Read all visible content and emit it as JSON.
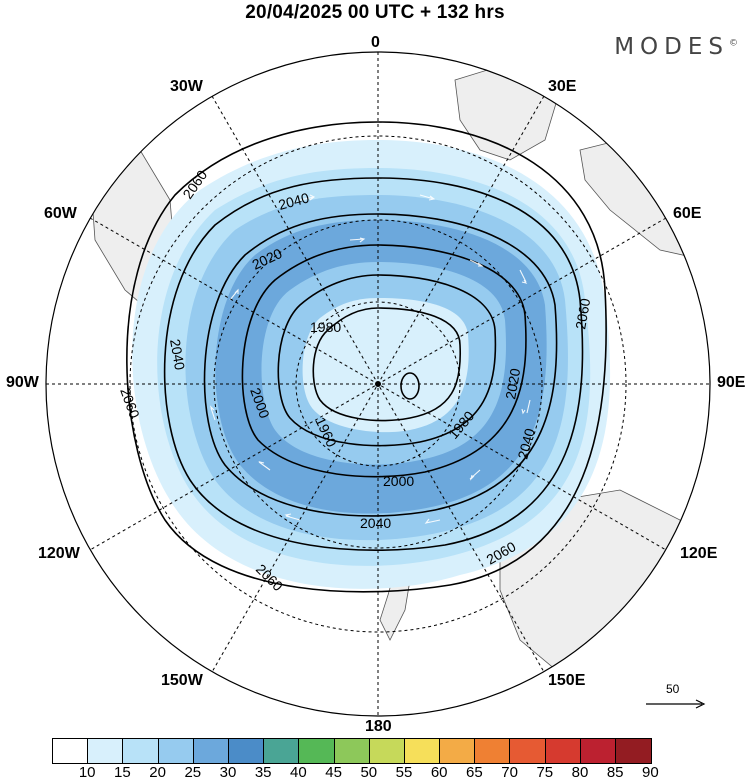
{
  "title": "20/04/2025  00 UTC  + 132 hrs",
  "brand": "MODES",
  "brand_mark": "©",
  "longitude_labels": {
    "n0": "0",
    "e30": "30E",
    "e60": "60E",
    "e90": "90E",
    "e120": "120E",
    "e150": "150E",
    "s180": "180",
    "w150": "150W",
    "w120": "120W",
    "w90": "90W",
    "w60": "60W",
    "w30": "30W"
  },
  "contour_labels": [
    "1960",
    "1980",
    "2000",
    "2020",
    "2040",
    "2060"
  ],
  "reference_vector": "50",
  "colorbar": {
    "ticks": [
      "10",
      "15",
      "20",
      "25",
      "30",
      "35",
      "40",
      "45",
      "50",
      "55",
      "60",
      "65",
      "70",
      "75",
      "80",
      "85",
      "90"
    ],
    "colors": [
      "#ffffff",
      "#d8f0fc",
      "#b8e2f8",
      "#96cbef",
      "#6ca8dc",
      "#4b8cc8",
      "#4aa595",
      "#55b856",
      "#8dc85a",
      "#c6d95a",
      "#f6df5a",
      "#f3ab46",
      "#ef8033",
      "#e65a33",
      "#d63a2f",
      "#bc2130",
      "#931c22"
    ]
  }
}
